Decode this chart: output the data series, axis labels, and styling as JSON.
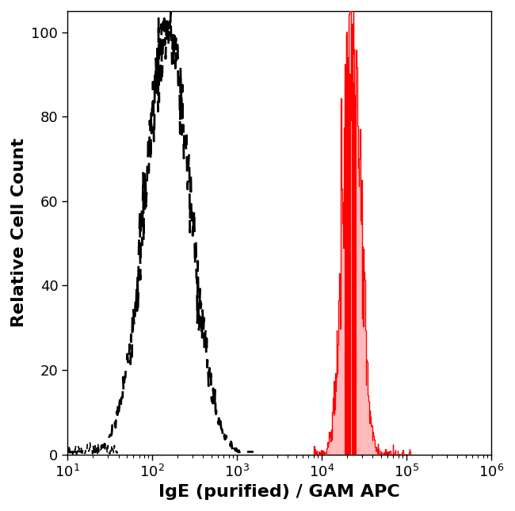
{
  "xlabel": "IgE (purified) / GAM APC",
  "ylabel": "Relative Cell Count",
  "xlim_log": [
    1,
    6
  ],
  "ylim": [
    0,
    105
  ],
  "yticks": [
    0,
    20,
    40,
    60,
    80,
    100
  ],
  "background_color": "#ffffff",
  "dashed_peak_log": 2.18,
  "dashed_sigma_log": 0.27,
  "red_peak_log": 4.35,
  "red_sigma_log": 0.1,
  "xlabel_fontsize": 16,
  "ylabel_fontsize": 16,
  "tick_fontsize": 13,
  "red_fill_color": "#ffbbbb",
  "red_line_color": "#ff0000",
  "dashed_color": "#000000"
}
